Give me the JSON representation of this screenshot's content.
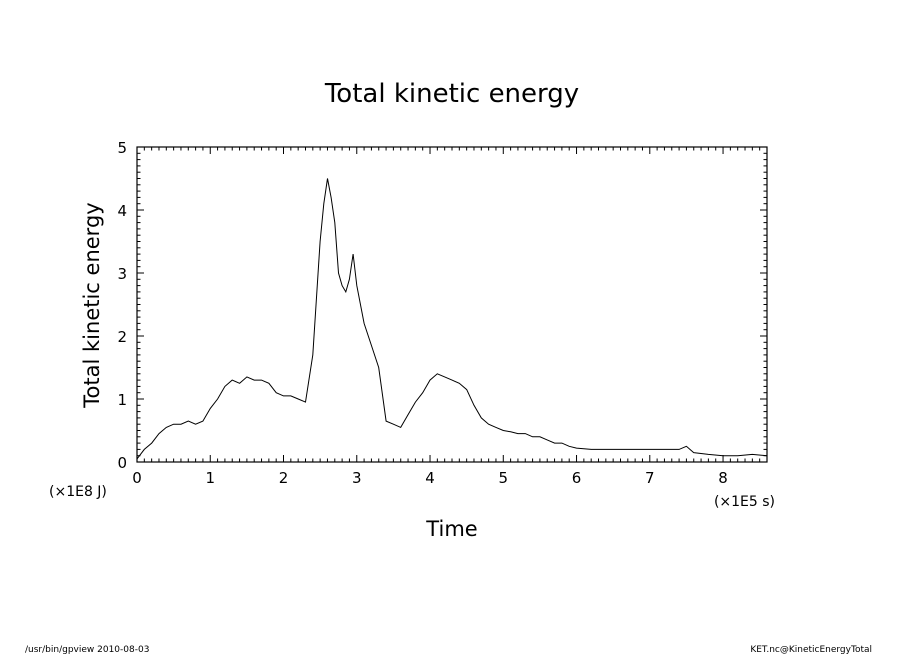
{
  "chart_data": {
    "type": "line",
    "title": "Total kinetic energy",
    "xlabel": "Time",
    "ylabel": "Total kinetic energy",
    "x_multiplier_label": "(×1E5 s)",
    "y_multiplier_label": "(×1E8 J)",
    "xlim": [
      0,
      8.6
    ],
    "ylim": [
      0,
      5
    ],
    "x_ticks": [
      0,
      1,
      2,
      3,
      4,
      5,
      6,
      7,
      8
    ],
    "y_ticks": [
      0,
      1,
      2,
      3,
      4,
      5
    ],
    "x_tick_labels": [
      "0",
      "1",
      "2",
      "3",
      "4",
      "5",
      "6",
      "7",
      "8"
    ],
    "y_tick_labels": [
      "0",
      "1",
      "2",
      "3",
      "4",
      "5"
    ],
    "grid": false,
    "line_color": "#000000",
    "series": [
      {
        "x": [
          0,
          0.1,
          0.2,
          0.3,
          0.4,
          0.5,
          0.6,
          0.7,
          0.8,
          0.9,
          1.0,
          1.1,
          1.2,
          1.3,
          1.4,
          1.5,
          1.6,
          1.7,
          1.8,
          1.9,
          2.0,
          2.1,
          2.2,
          2.3,
          2.4,
          2.5,
          2.55,
          2.6,
          2.65,
          2.7,
          2.75,
          2.8,
          2.85,
          2.9,
          2.95,
          3.0,
          3.1,
          3.2,
          3.3,
          3.4,
          3.5,
          3.6,
          3.7,
          3.8,
          3.9,
          4.0,
          4.1,
          4.2,
          4.3,
          4.4,
          4.5,
          4.6,
          4.7,
          4.8,
          4.9,
          5.0,
          5.1,
          5.2,
          5.3,
          5.4,
          5.5,
          5.6,
          5.7,
          5.8,
          5.9,
          6.0,
          6.2,
          6.4,
          6.6,
          6.8,
          7.0,
          7.2,
          7.4,
          7.5,
          7.6,
          7.8,
          8.0,
          8.2,
          8.4,
          8.6
        ],
        "values": [
          0.05,
          0.2,
          0.3,
          0.45,
          0.55,
          0.6,
          0.6,
          0.65,
          0.6,
          0.65,
          0.85,
          1.0,
          1.2,
          1.3,
          1.25,
          1.35,
          1.3,
          1.3,
          1.25,
          1.1,
          1.05,
          1.05,
          1.0,
          0.95,
          1.7,
          3.5,
          4.1,
          4.5,
          4.2,
          3.8,
          3.0,
          2.8,
          2.7,
          2.9,
          3.3,
          2.8,
          2.2,
          1.85,
          1.5,
          0.65,
          0.6,
          0.55,
          0.75,
          0.95,
          1.1,
          1.3,
          1.4,
          1.35,
          1.3,
          1.25,
          1.15,
          0.9,
          0.7,
          0.6,
          0.55,
          0.5,
          0.48,
          0.45,
          0.45,
          0.4,
          0.4,
          0.35,
          0.3,
          0.3,
          0.25,
          0.22,
          0.2,
          0.2,
          0.2,
          0.2,
          0.2,
          0.2,
          0.2,
          0.25,
          0.15,
          0.12,
          0.1,
          0.1,
          0.12,
          0.1
        ]
      }
    ]
  },
  "footer": {
    "left": "/usr/bin/gpview  2010-08-03",
    "right": "KET.nc@KineticEnergyTotal"
  }
}
